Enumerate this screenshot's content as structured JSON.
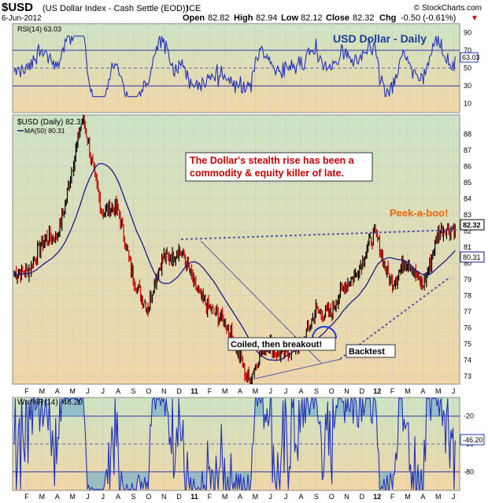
{
  "header": {
    "symbol": "$USD",
    "name": "(US Dollar Index - Cash Settle (EOD))",
    "exchange": "ICE",
    "source": "© StockCharts.com",
    "date": "6-Jun-2012",
    "open_label": "Open",
    "open": "82.82",
    "high_label": "High",
    "high": "82.94",
    "low_label": "Low",
    "low": "82.12",
    "close_label": "Close",
    "close": "82.32",
    "chg_label": "Chg",
    "chg": "-0.50 (-0.61%)",
    "chg_arrow": "▼"
  },
  "rsi_panel": {
    "legend": "RSI(14) 63.03",
    "title": "USD Dollar - Daily",
    "ticks": [
      "90",
      "70",
      "50",
      "30",
      "10"
    ],
    "last_value": "63.03"
  },
  "price_panel": {
    "legend_main": "$USD (Daily) 82.32",
    "legend_ma": "MA(50) 80.31",
    "ticks": [
      "88",
      "87",
      "86",
      "85",
      "84",
      "83",
      "82",
      "81",
      "80",
      "79",
      "78",
      "77",
      "76",
      "75",
      "74",
      "73"
    ],
    "last_price": "82.32",
    "last_ma": "80.31"
  },
  "willr_panel": {
    "legend": "Wm%R(14) -46.20",
    "ticks": [
      "-20",
      "-50",
      "-80"
    ],
    "last_value": "-46.20"
  },
  "annotations": {
    "main_line1": "The Dollar's stealth rise has been a",
    "main_line2": "commodity & equity killer of late.",
    "peek": "Peek-a-boo!",
    "coiled": "Coiled, then breakout!",
    "backtest": "Backtest"
  },
  "x_axis": {
    "labels": [
      "F",
      "M",
      "A",
      "M",
      "J",
      "J",
      "A",
      "S",
      "O",
      "N",
      "D",
      "11",
      "F",
      "M",
      "A",
      "M",
      "J",
      "J",
      "A",
      "S",
      "O",
      "N",
      "D",
      "12",
      "F",
      "M",
      "A",
      "M",
      "J"
    ]
  },
  "colors": {
    "panel_top": "#cde4c4",
    "panel_bottom": "#f1d6a6",
    "up_bar": "#000000",
    "down_bar": "#cc0000",
    "ma_line": "#1a1a8c",
    "indicator_line": "#2233bb",
    "trend_line": "#5a5aa8",
    "zone_fill": "#7fb3c8"
  },
  "chart_data": [
    {
      "type": "line",
      "name": "RSI(14)",
      "ylim": [
        0,
        100
      ],
      "levels": [
        30,
        50,
        70
      ],
      "last": 63.03
    },
    {
      "type": "ohlc",
      "title": "$USD (Daily)",
      "ylim": [
        72.5,
        89.2
      ],
      "x_range": [
        "2010-02",
        "2012-06-06"
      ],
      "approx_closes": [
        {
          "date": "2010-02",
          "value": 79.8
        },
        {
          "date": "2010-03",
          "value": 80.9
        },
        {
          "date": "2010-04",
          "value": 81.8
        },
        {
          "date": "2010-05",
          "value": 85.9
        },
        {
          "date": "2010-06-07",
          "value": 88.7
        },
        {
          "date": "2010-07",
          "value": 83.5
        },
        {
          "date": "2010-08",
          "value": 83.0
        },
        {
          "date": "2010-09",
          "value": 79.5
        },
        {
          "date": "2010-10",
          "value": 77.0
        },
        {
          "date": "2010-11",
          "value": 80.5
        },
        {
          "date": "2010-12",
          "value": 81.0
        },
        {
          "date": "2011-01",
          "value": 78.4
        },
        {
          "date": "2011-02",
          "value": 77.6
        },
        {
          "date": "2011-03",
          "value": 76.0
        },
        {
          "date": "2011-04",
          "value": 74.5
        },
        {
          "date": "2011-05-04",
          "value": 72.9
        },
        {
          "date": "2011-06",
          "value": 75.0
        },
        {
          "date": "2011-07",
          "value": 74.6
        },
        {
          "date": "2011-08",
          "value": 74.4
        },
        {
          "date": "2011-09",
          "value": 77.5
        },
        {
          "date": "2011-10",
          "value": 76.5
        },
        {
          "date": "2011-11",
          "value": 79.0
        },
        {
          "date": "2011-12",
          "value": 80.0
        },
        {
          "date": "2012-01-13",
          "value": 81.6
        },
        {
          "date": "2012-02",
          "value": 79.0
        },
        {
          "date": "2012-03",
          "value": 79.8
        },
        {
          "date": "2012-04",
          "value": 78.9
        },
        {
          "date": "2012-05",
          "value": 81.5
        },
        {
          "date": "2012-06-06",
          "value": 82.32
        }
      ],
      "series": [
        {
          "name": "$USD (Daily)",
          "last": 82.32
        },
        {
          "name": "MA(50)",
          "last": 80.31
        }
      ]
    },
    {
      "type": "line",
      "name": "Wm%R(14)",
      "ylim": [
        -100,
        0
      ],
      "levels": [
        -20,
        -50,
        -80
      ],
      "last": -46.2
    }
  ]
}
